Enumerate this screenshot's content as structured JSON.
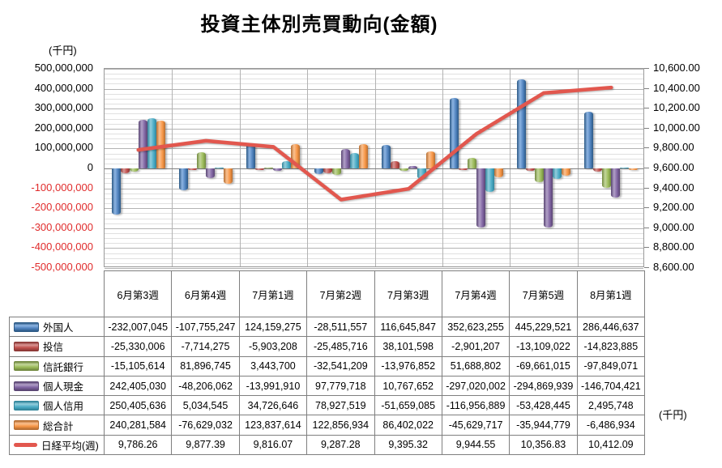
{
  "title": "投資主体別売買動向(金額)",
  "left_axis": {
    "unit": "(千円)",
    "max": 500000000,
    "min": -500000000,
    "major_step": 100000000,
    "minor_divisions_per_major": 4,
    "negative_label_color": "#e02b2b"
  },
  "right_axis": {
    "unit": "(千円)",
    "max": 10600,
    "min": 8600,
    "major_step": 200
  },
  "chart_data": {
    "type": "bar",
    "title": "投資主体別売買動向(金額)",
    "categories": [
      "6月第3週",
      "6月第4週",
      "7月第1週",
      "7月第2週",
      "7月第3週",
      "7月第4週",
      "7月第5週",
      "8月第1週"
    ],
    "ylim_left": [
      -500000000,
      500000000
    ],
    "ylim_right": [
      8600,
      10600
    ],
    "grid": true,
    "legend_position": "table-left",
    "series": [
      {
        "key": "foreigners",
        "name": "外国人",
        "type": "bar",
        "color": "#4f81bd",
        "dark": "#2c5985",
        "light": "#8db4e2",
        "values": [
          -232007045,
          -107755247,
          124159275,
          -28511557,
          116645847,
          352623255,
          445229521,
          286446637
        ]
      },
      {
        "key": "investment-trust",
        "name": "投信",
        "type": "bar",
        "color": "#c0504d",
        "dark": "#8c3836",
        "light": "#d99694",
        "values": [
          -25330006,
          -7714275,
          -5903208,
          -25485716,
          38101598,
          -2901207,
          -13109022,
          -14823885
        ]
      },
      {
        "key": "trust-bank",
        "name": "信託銀行",
        "type": "bar",
        "color": "#9bbb59",
        "dark": "#71893f",
        "light": "#c3d69b",
        "values": [
          -15105614,
          81896745,
          3443700,
          -32541209,
          -13976852,
          51688802,
          -69661015,
          -97849071
        ]
      },
      {
        "key": "individual-cash",
        "name": "個人現金",
        "type": "bar",
        "color": "#8064a2",
        "dark": "#5a4673",
        "light": "#b1a0c7",
        "values": [
          242405030,
          -48206062,
          -13991910,
          97779718,
          10767652,
          -297020002,
          -294869939,
          -146704421
        ]
      },
      {
        "key": "individual-margin",
        "name": "個人信用",
        "type": "bar",
        "color": "#4bacc6",
        "dark": "#31859b",
        "light": "#92cddc",
        "values": [
          250405636,
          5034545,
          34726646,
          78927519,
          -51659085,
          -116956889,
          -53428445,
          2495748
        ]
      },
      {
        "key": "total",
        "name": "総合計",
        "type": "bar",
        "color": "#f79646",
        "dark": "#b66d31",
        "light": "#fac08f",
        "values": [
          240281584,
          -76629032,
          123837614,
          122856934,
          86402022,
          -45629717,
          -35944779,
          -6486934
        ]
      },
      {
        "key": "nikkei-weekly",
        "name": "日経平均(週)",
        "type": "line",
        "color": "#e2574e",
        "values": [
          9786.26,
          9877.39,
          9816.07,
          9287.28,
          9395.32,
          9944.55,
          10356.83,
          10412.09
        ]
      }
    ]
  }
}
